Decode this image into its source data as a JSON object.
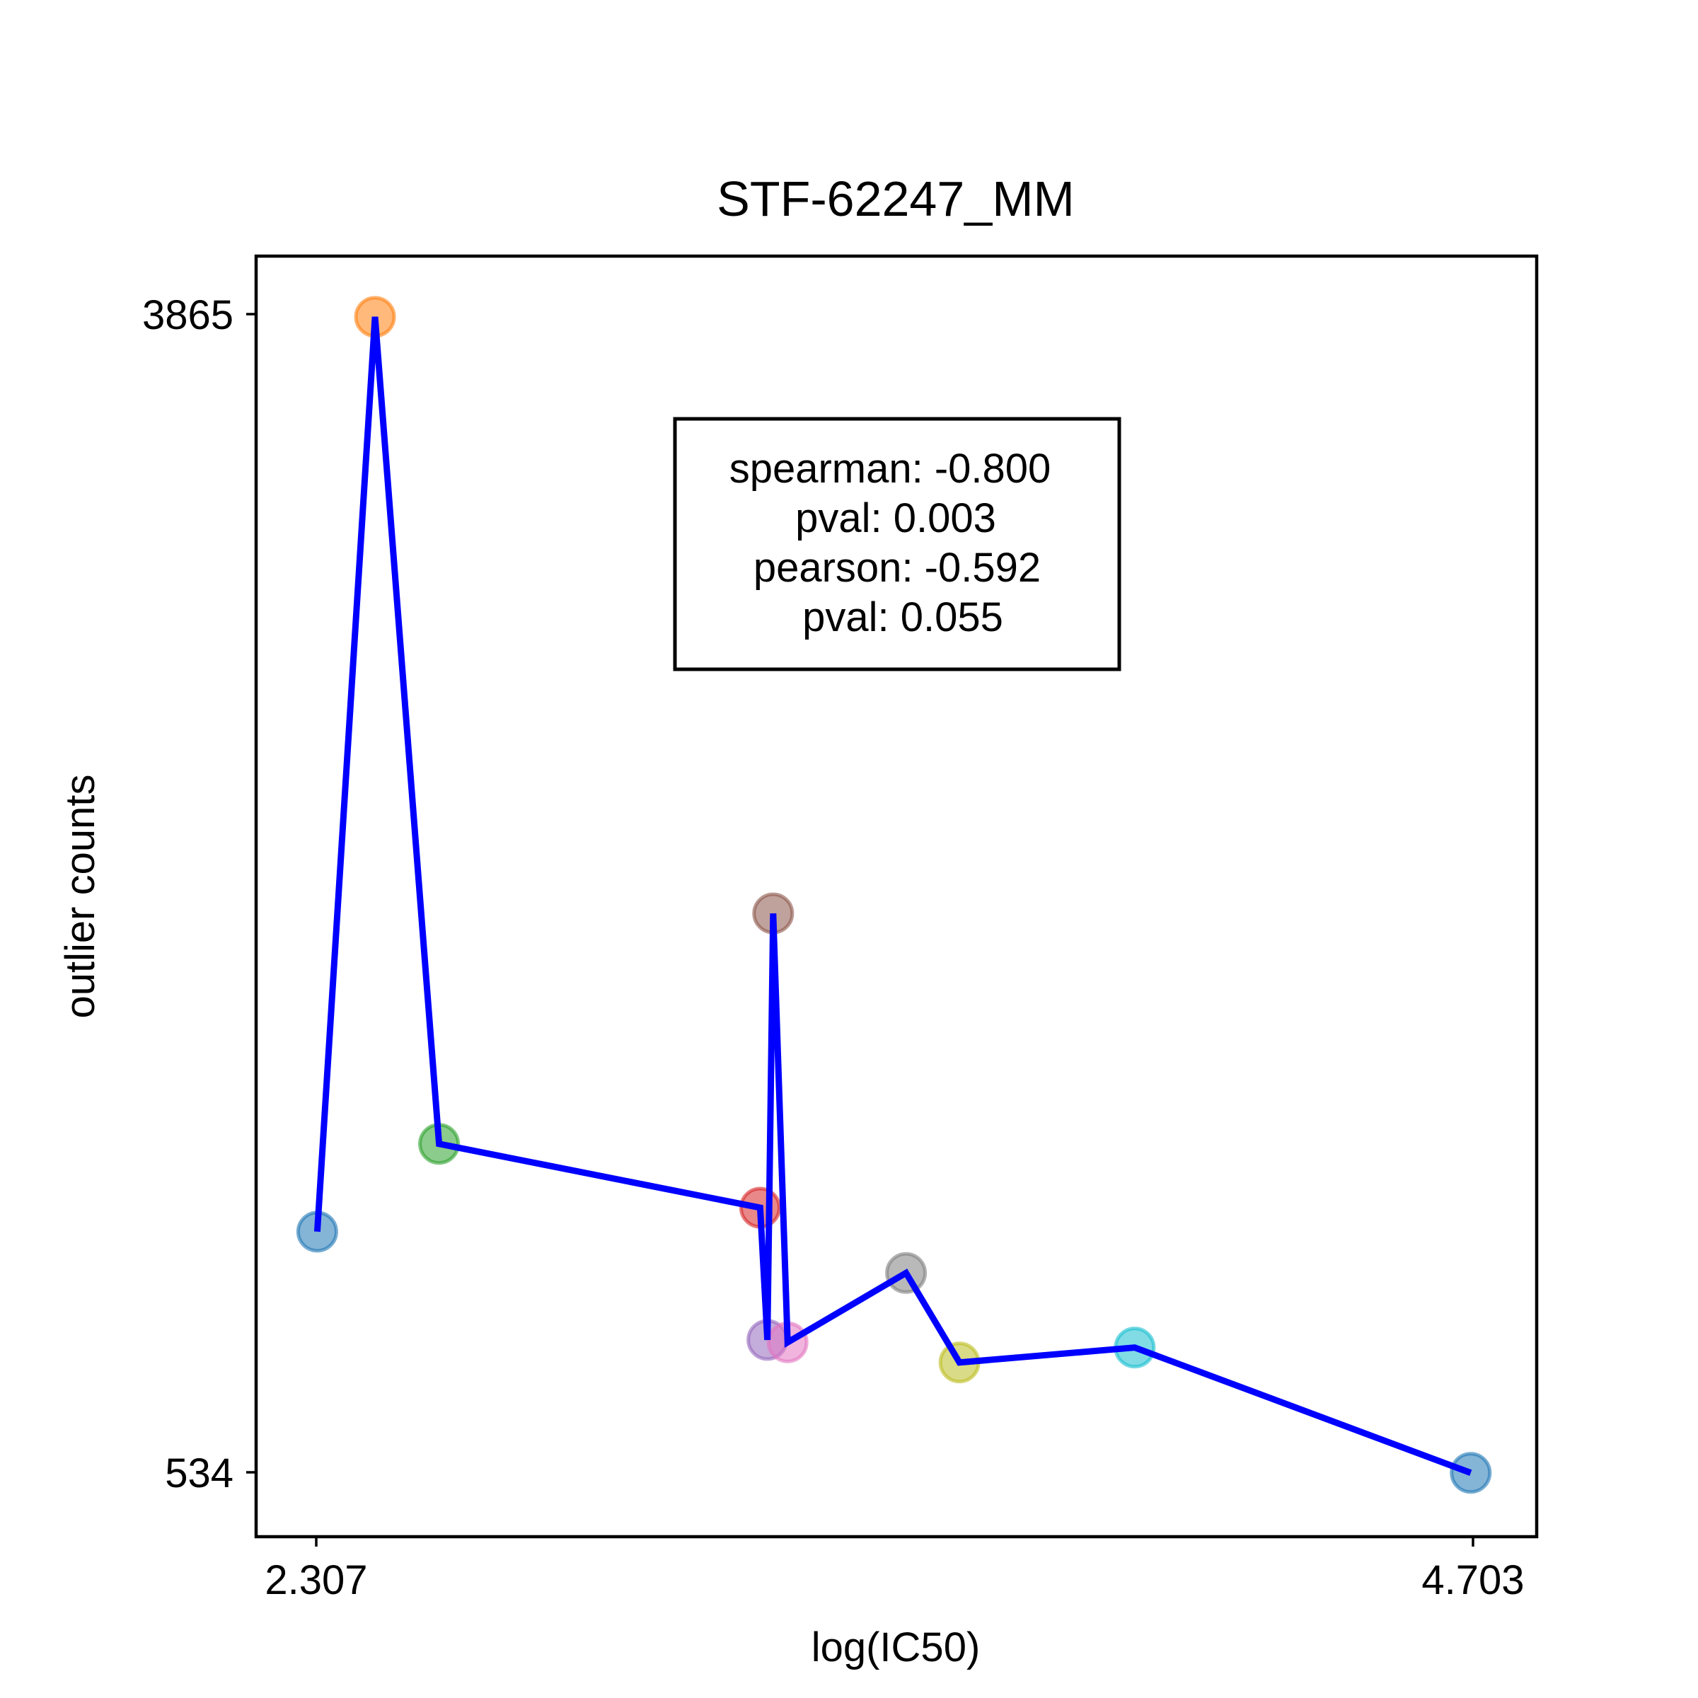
{
  "chart_data": {
    "type": "scatter",
    "title": "STF-62247_MM",
    "xlabel": "log(IC50)",
    "ylabel": "outlier counts",
    "xticks": [
      "2.307",
      "4.703"
    ],
    "yticks": [
      "3865",
      "534"
    ],
    "xlim": [
      2.18,
      4.84
    ],
    "ylim": [
      350,
      4040
    ],
    "grid": false,
    "line_color": "#0000ff",
    "stats_box": {
      "lines": [
        "spearman: -0.800",
        "pval: 0.003",
        "pearson: -0.592",
        "pval: 0.055"
      ]
    },
    "points": [
      {
        "x": 2.307,
        "y": 1229,
        "color": "#1f77b4"
      },
      {
        "x": 2.427,
        "y": 3865,
        "color": "#ff7f0e"
      },
      {
        "x": 2.56,
        "y": 1482,
        "color": "#2ca02c"
      },
      {
        "x": 3.227,
        "y": 1298,
        "color": "#d62728"
      },
      {
        "x": 3.242,
        "y": 917,
        "color": "#9467bd"
      },
      {
        "x": 3.254,
        "y": 2146,
        "color": "#8c564b"
      },
      {
        "x": 3.284,
        "y": 910,
        "color": "#e377c2"
      },
      {
        "x": 3.53,
        "y": 1110,
        "color": "#7f7f7f"
      },
      {
        "x": 3.641,
        "y": 852,
        "color": "#bcbd22"
      },
      {
        "x": 4.005,
        "y": 895,
        "color": "#17becf"
      },
      {
        "x": 4.703,
        "y": 534,
        "color": "#1f77b4"
      }
    ]
  }
}
